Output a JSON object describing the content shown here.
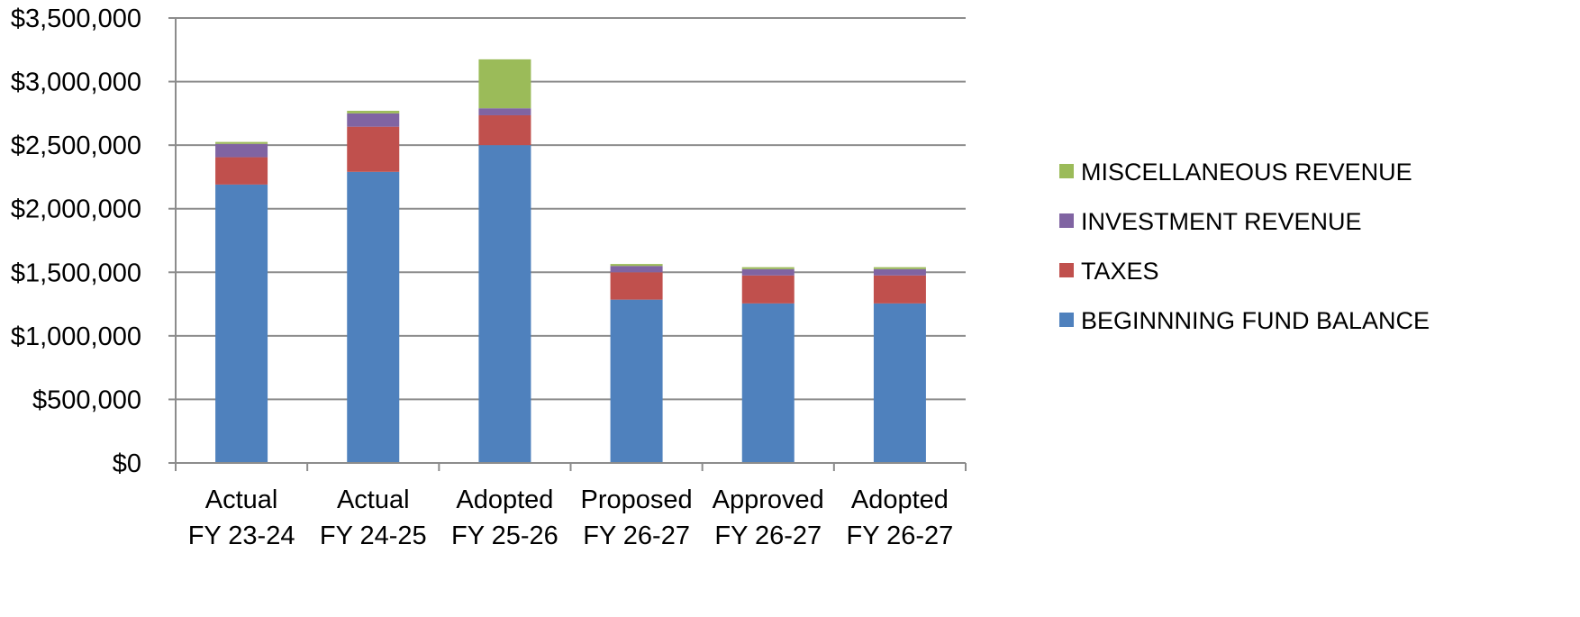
{
  "chart_data": {
    "type": "bar",
    "stacked": true,
    "title": "",
    "xlabel": "",
    "ylabel": "",
    "ylim": [
      0,
      3500000
    ],
    "yticks": [
      0,
      500000,
      1000000,
      1500000,
      2000000,
      2500000,
      3000000,
      3500000
    ],
    "ytick_labels": [
      "$0",
      "$500,000",
      "$1,000,000",
      "$1,500,000",
      "$2,000,000",
      "$2,500,000",
      "$3,000,000",
      "$3,500,000"
    ],
    "grid": true,
    "legend_position": "right",
    "categories": [
      [
        "Actual",
        "FY 23-24"
      ],
      [
        "Actual",
        "FY 24-25"
      ],
      [
        "Adopted",
        "FY 25-26"
      ],
      [
        "Proposed",
        "FY 26-27"
      ],
      [
        "Approved",
        "FY 26-27"
      ],
      [
        "Adopted",
        "FY 26-27"
      ]
    ],
    "series": [
      {
        "name": "BEGINNNING FUND BALANCE",
        "color": "#4F81BD",
        "values": [
          2190000,
          2290000,
          2500000,
          1285000,
          1255000,
          1255000
        ]
      },
      {
        "name": "TAXES",
        "color": "#C0504D",
        "values": [
          215000,
          355000,
          235000,
          215000,
          220000,
          220000
        ]
      },
      {
        "name": "INVESTMENT REVENUE",
        "color": "#8064A2",
        "values": [
          105000,
          105000,
          55000,
          50000,
          50000,
          50000
        ]
      },
      {
        "name": "MISCELLANEOUS REVENUE",
        "color": "#9BBB59",
        "values": [
          15000,
          20000,
          385000,
          15000,
          15000,
          15000
        ]
      }
    ],
    "legend_order": [
      "MISCELLANEOUS REVENUE",
      "INVESTMENT REVENUE",
      "TAXES",
      "BEGINNNING FUND BALANCE"
    ]
  }
}
